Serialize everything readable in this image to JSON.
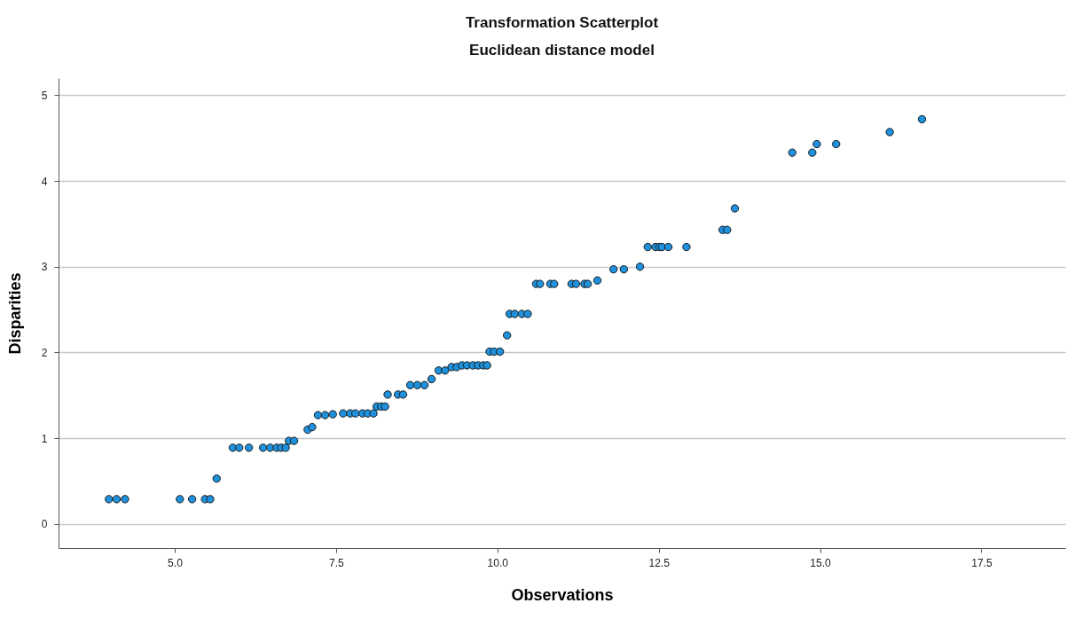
{
  "chart_data": {
    "type": "scatter",
    "title": "Transformation Scatterplot",
    "subtitle": "Euclidean distance model",
    "xlabel": "Observations",
    "ylabel": "Disparities",
    "x": [
      3.98,
      4.1,
      4.23,
      5.08,
      5.27,
      5.47,
      5.55,
      5.65,
      5.9,
      6.0,
      6.15,
      6.37,
      6.48,
      6.58,
      6.65,
      6.72,
      6.77,
      6.85,
      7.06,
      7.13,
      7.22,
      7.33,
      7.45,
      7.61,
      7.72,
      7.8,
      7.91,
      7.99,
      8.08,
      8.13,
      8.2,
      8.26,
      8.3,
      8.46,
      8.54,
      8.65,
      8.76,
      8.87,
      8.98,
      9.09,
      9.19,
      9.29,
      9.37,
      9.45,
      9.53,
      9.62,
      9.7,
      9.78,
      9.84,
      9.88,
      9.95,
      10.04,
      10.15,
      10.19,
      10.27,
      10.38,
      10.47,
      10.6,
      10.66,
      10.82,
      10.88,
      11.15,
      11.22,
      11.35,
      11.4,
      11.55,
      11.8,
      11.96,
      12.21,
      12.33,
      12.45,
      12.51,
      12.55,
      12.65,
      12.93,
      13.49,
      13.56,
      13.68,
      14.57,
      14.88,
      14.95,
      15.25,
      16.08,
      16.58
    ],
    "series": [
      {
        "color": "#1e90dc",
        "values": [
          0.29,
          0.29,
          0.29,
          0.29,
          0.29,
          0.29,
          0.29,
          0.53,
          0.89,
          0.89,
          0.89,
          0.89,
          0.89,
          0.89,
          0.89,
          0.89,
          0.97,
          0.97,
          1.1,
          1.13,
          1.27,
          1.27,
          1.28,
          1.29,
          1.29,
          1.29,
          1.29,
          1.29,
          1.29,
          1.37,
          1.37,
          1.37,
          1.51,
          1.51,
          1.51,
          1.62,
          1.62,
          1.62,
          1.69,
          1.79,
          1.79,
          1.83,
          1.83,
          1.85,
          1.85,
          1.85,
          1.85,
          1.85,
          1.85,
          2.01,
          2.01,
          2.01,
          2.2,
          2.45,
          2.45,
          2.45,
          2.45,
          2.8,
          2.8,
          2.8,
          2.8,
          2.8,
          2.8,
          2.8,
          2.8,
          2.84,
          2.97,
          2.97,
          3.0,
          3.23,
          3.23,
          3.23,
          3.23,
          3.23,
          3.23,
          3.43,
          3.43,
          3.68,
          4.33,
          4.33,
          4.43,
          4.43,
          4.57,
          4.72
        ]
      }
    ],
    "xlim": [
      3.2,
      18.8
    ],
    "ylim": [
      -0.28,
      5.2
    ],
    "xticks": [
      {
        "value": 5,
        "label": "5.0"
      },
      {
        "value": 7.5,
        "label": "7.5"
      },
      {
        "value": 10,
        "label": "10.0"
      },
      {
        "value": 12.5,
        "label": "12.5"
      },
      {
        "value": 15,
        "label": "15.0"
      },
      {
        "value": 17.5,
        "label": "17.5"
      }
    ],
    "yticks": [
      0,
      1,
      2,
      3,
      4,
      5
    ],
    "grid": "y",
    "marker": "circle"
  }
}
